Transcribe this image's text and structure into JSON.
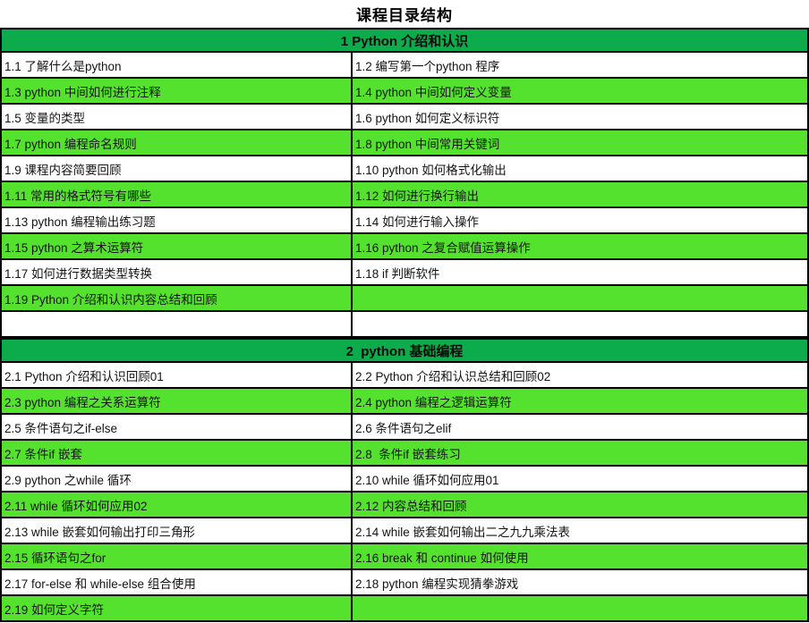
{
  "title": "课程目录结构",
  "colors": {
    "section_header_bg": "#0cab4b",
    "row_green_bg": "#54e22f",
    "row_white_bg": "#ffffff",
    "border": "#000000",
    "text": "#141414"
  },
  "sections": [
    {
      "header": "1 Python 介绍和认识",
      "rows": [
        {
          "left": "1.1 了解什么是python",
          "right": "1.2 编写第一个python 程序",
          "shade": "white"
        },
        {
          "left": "1.3 python 中间如何进行注释",
          "right": "1.4 python 中间如何定义变量",
          "shade": "green"
        },
        {
          "left": "1.5 变量的类型",
          "right": "1.6 python 如何定义标识符",
          "shade": "white"
        },
        {
          "left": "1.7 python 编程命名规则",
          "right": "1.8 python 中间常用关键词",
          "shade": "green"
        },
        {
          "left": "1.9 课程内容简要回顾",
          "right": "1.10 python 如何格式化输出",
          "shade": "white"
        },
        {
          "left": "1.11 常用的格式符号有哪些",
          "right": "1.12 如何进行换行输出",
          "shade": "green"
        },
        {
          "left": "1.13 python 编程输出练习题",
          "right": "1.14 如何进行输入操作",
          "shade": "white"
        },
        {
          "left": "1.15 python 之算术运算符",
          "right": "1.16 python 之复合赋值运算操作",
          "shade": "green"
        },
        {
          "left": "1.17 如何进行数据类型转换",
          "right": "1.18 if 判断软件",
          "shade": "white"
        },
        {
          "left": "1.19 Python 介绍和认识内容总结和回顾",
          "right": "",
          "shade": "green"
        },
        {
          "left": "",
          "right": "",
          "shade": "white"
        }
      ]
    },
    {
      "header": "2  python 基础编程",
      "rows": [
        {
          "left": "2.1 Python 介绍和认识回顾01",
          "right": "2.2 Python 介绍和认识总结和回顾02",
          "shade": "white"
        },
        {
          "left": "2.3 python 编程之关系运算符",
          "right": "2.4 python 编程之逻辑运算符",
          "shade": "green"
        },
        {
          "left": "2.5 条件语句之if-else",
          "right": "2.6 条件语句之elif",
          "shade": "white"
        },
        {
          "left": "2.7 条件if 嵌套",
          "right": "2.8  条件if 嵌套练习",
          "shade": "green"
        },
        {
          "left": "2.9 python 之while 循环",
          "right": "2.10 while 循环如何应用01",
          "shade": "white"
        },
        {
          "left": "2.11 while 循环如何应用02",
          "right": "2.12 内容总结和回顾",
          "shade": "green"
        },
        {
          "left": "2.13 while 嵌套如何输出打印三角形",
          "right": "2.14 while 嵌套如何输出二之九九乘法表",
          "shade": "white"
        },
        {
          "left": "2.15 循环语句之for",
          "right": "2.16 break 和 continue 如何使用",
          "shade": "green"
        },
        {
          "left": "2.17 for-else 和 while-else 组合使用",
          "right": "2.18 python 编程实现猜拳游戏",
          "shade": "white"
        },
        {
          "left": "2.19 如何定义字符",
          "right": "",
          "shade": "green"
        }
      ]
    }
  ]
}
